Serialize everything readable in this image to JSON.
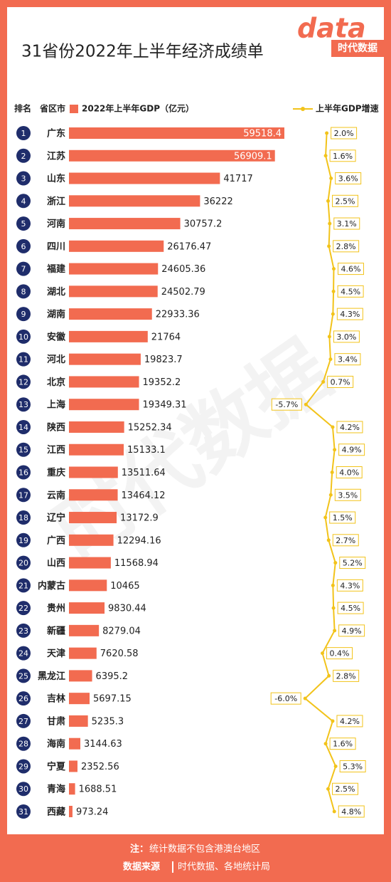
{
  "chart_data": {
    "type": "bar",
    "title": "31省份2022年上半年经济成绩单",
    "rank_label": "排名",
    "region_label": "省区市",
    "ranks": [
      1,
      2,
      3,
      4,
      5,
      6,
      7,
      8,
      9,
      10,
      11,
      12,
      13,
      14,
      15,
      16,
      17,
      18,
      19,
      20,
      21,
      22,
      23,
      24,
      25,
      26,
      27,
      28,
      29,
      30,
      31
    ],
    "categories": [
      "广东",
      "江苏",
      "山东",
      "浙江",
      "河南",
      "四川",
      "福建",
      "湖北",
      "湖南",
      "安徽",
      "河北",
      "北京",
      "上海",
      "陕西",
      "江西",
      "重庆",
      "云南",
      "辽宁",
      "广西",
      "山西",
      "内蒙古",
      "贵州",
      "新疆",
      "天津",
      "黑龙江",
      "吉林",
      "甘肃",
      "海南",
      "宁夏",
      "青海",
      "西藏"
    ],
    "series": [
      {
        "name": "2022年上半年GDP（亿元）",
        "color": "#f26b50",
        "values": [
          59518.4,
          56909.1,
          41717,
          36222,
          30757.2,
          26176.47,
          24605.36,
          24502.79,
          22933.36,
          21764,
          19823.7,
          19352.2,
          19349.31,
          15252.34,
          15133.1,
          13511.64,
          13464.12,
          13172.9,
          12294.16,
          11568.94,
          10465,
          9830.44,
          8279.04,
          7620.58,
          6395.2,
          5697.15,
          5235.3,
          3144.63,
          2352.56,
          1688.51,
          973.24
        ]
      },
      {
        "name": "上半年GDP增速",
        "type": "line",
        "color": "#f2c31a",
        "values": [
          2.0,
          1.6,
          3.6,
          2.5,
          3.1,
          2.8,
          4.6,
          4.5,
          4.3,
          3.0,
          3.4,
          0.7,
          -5.7,
          4.2,
          4.9,
          4.0,
          3.5,
          1.5,
          2.7,
          5.2,
          4.3,
          4.5,
          4.9,
          0.4,
          2.8,
          -6.0,
          4.2,
          1.6,
          5.3,
          2.5,
          4.8
        ],
        "value_labels": [
          "2.0%",
          "1.6%",
          "3.6%",
          "2.5%",
          "3.1%",
          "2.8%",
          "4.6%",
          "4.5%",
          "4.3%",
          "3.0%",
          "3.4%",
          "0.7%",
          "-5.7%",
          "4.2%",
          "4.9%",
          "4.0%",
          "3.5%",
          "1.5%",
          "2.7%",
          "5.2%",
          "4.3%",
          "4.5%",
          "4.9%",
          "0.4%",
          "2.8%",
          "-6.0%",
          "4.2%",
          "1.6%",
          "5.3%",
          "2.5%",
          "4.8%"
        ]
      }
    ]
  },
  "logo": {
    "mark": "data",
    "brand": "时代数据"
  },
  "footer": {
    "note_label": "注：",
    "note": "统计数据不包含港澳台地区",
    "source_label": "数据来源",
    "source": "时代数据、各地统计局"
  }
}
